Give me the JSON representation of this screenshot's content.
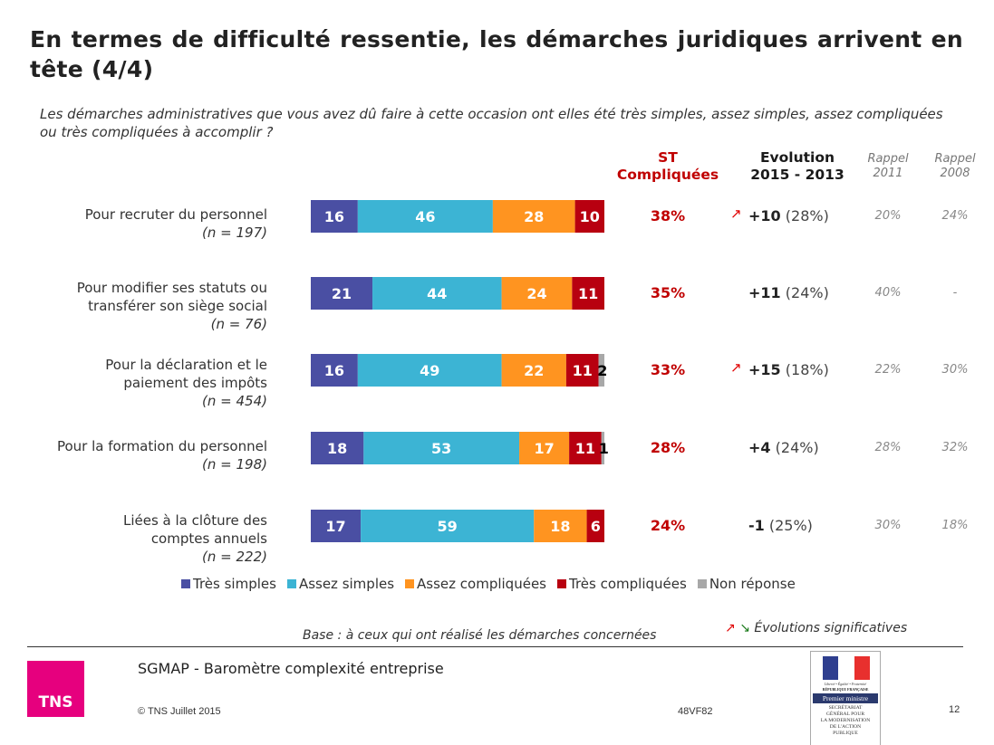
{
  "title": "En termes de difficulté ressentie, les démarches juridiques arrivent en tête (4/4)",
  "question": "Les démarches administratives que vous avez dû faire à cette occasion ont elles été très simples, assez simples, assez compliquées ou très compliquées à accomplir ?",
  "columns": {
    "st_line1": "ST",
    "st_line2": "Compliquées",
    "evo_line1": "Evolution",
    "evo_line2": "2015 - 2013",
    "r2011_line1": "Rappel",
    "r2011_line2": "2011",
    "r2008_line1": "Rappel",
    "r2008_line2": "2008"
  },
  "colors": {
    "tres_simples": "#4a4fa3",
    "assez_simples": "#3cb4d4",
    "assez_compliquees": "#ff9420",
    "tres_compliquees": "#b80010",
    "non_reponse": "#a8a8a8",
    "st_red": "#c00000",
    "arrow_up": "#e00000",
    "arrow_down": "#1a7a1a",
    "tns_pink": "#e6007e"
  },
  "rows": [
    {
      "label_lines": [
        "Pour recruter du personnel"
      ],
      "n": "(n = 197)",
      "st": "38%",
      "evo_arrow": "↗",
      "evo_delta": "+10",
      "evo_prev": "(28%)",
      "r2011": "20%",
      "r2008": "24%"
    },
    {
      "label_lines": [
        "Pour modifier ses statuts ou",
        "transférer son siège social"
      ],
      "n": "(n = 76)",
      "st": "35%",
      "evo_arrow": "",
      "evo_delta": "+11",
      "evo_prev": "(24%)",
      "r2011": "40%",
      "r2008": "-"
    },
    {
      "label_lines": [
        "Pour la déclaration et le",
        "paiement des impôts"
      ],
      "n": "(n = 454)",
      "st": "33%",
      "evo_arrow": "↗",
      "evo_delta": "+15",
      "evo_prev": "(18%)",
      "r2011": "22%",
      "r2008": "30%"
    },
    {
      "label_lines": [
        "Pour la formation du personnel"
      ],
      "n": "(n = 198)",
      "st": "28%",
      "evo_arrow": "",
      "evo_delta": "+4",
      "evo_prev": "(24%)",
      "r2011": "28%",
      "r2008": "32%"
    },
    {
      "label_lines": [
        "Liées à la clôture des",
        "comptes annuels"
      ],
      "n": "(n = 222)",
      "st": "24%",
      "evo_arrow": "",
      "evo_delta": "-1",
      "evo_prev": "(25%)",
      "r2011": "30%",
      "r2008": "18%"
    }
  ],
  "chart_data": {
    "type": "bar",
    "orientation": "horizontal",
    "stacked": true,
    "percent_scale": [
      0,
      100
    ],
    "categories": [
      "Pour recruter du personnel (n = 197)",
      "Pour modifier ses statuts ou transférer son siège social (n = 76)",
      "Pour la déclaration et le paiement des impôts (n = 454)",
      "Pour la formation du personnel (n = 198)",
      "Liées à la clôture des comptes annuels (n = 222)"
    ],
    "series": [
      {
        "name": "Très simples",
        "key": "tres_simples",
        "values": [
          16,
          21,
          16,
          18,
          17
        ]
      },
      {
        "name": "Assez simples",
        "key": "assez_simples",
        "values": [
          46,
          44,
          49,
          53,
          59
        ]
      },
      {
        "name": "Assez compliquées",
        "key": "assez_compliquees",
        "values": [
          28,
          24,
          22,
          17,
          18
        ]
      },
      {
        "name": "Très compliquées",
        "key": "tres_compliquees",
        "values": [
          10,
          11,
          11,
          11,
          6
        ]
      },
      {
        "name": "Non réponse",
        "key": "non_reponse",
        "values": [
          0,
          0,
          2,
          1,
          0
        ]
      }
    ],
    "legend_position": "bottom",
    "grid": false,
    "title": "",
    "xlabel": "",
    "ylabel": ""
  },
  "legend": [
    "Très simples",
    "Assez simples",
    "Assez compliquées",
    "Très compliquées",
    "Non réponse"
  ],
  "base_note": "Base : à ceux qui ont réalisé les démarches concernées",
  "significance_note": {
    "up": "↗",
    "down": "↘",
    "label": "Évolutions significatives"
  },
  "footer": {
    "logo": "TNS",
    "title": "SGMAP - Baromètre complexité entreprise",
    "copyright": "© TNS Juillet 2015",
    "code": "48VF82",
    "page": "12",
    "gov_logo": {
      "motto": "Liberté • Égalité • Fraternité",
      "republic": "RÉPUBLIQUE FRANÇAISE",
      "ministry": "Premier ministre",
      "lines": [
        "SECRÉTARIAT",
        "GÉNÉRAL POUR",
        "LA MODERNISATION",
        "DE L'ACTION",
        "PUBLIQUE"
      ]
    }
  }
}
